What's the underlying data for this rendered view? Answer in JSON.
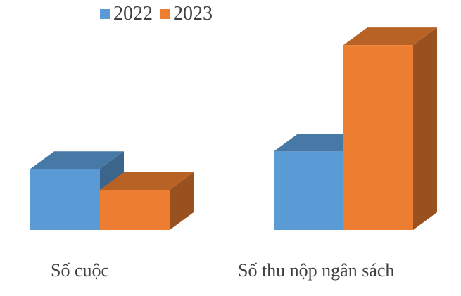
{
  "chart_data": {
    "type": "bar",
    "style": "3d-clustered-column",
    "categories": [
      "Số cuộc",
      "Số thu nộp ngân sách"
    ],
    "series": [
      {
        "name": "2022",
        "color": "#5B9BD5",
        "values": [
          35,
          45
        ]
      },
      {
        "name": "2023",
        "color": "#ED7D31",
        "values": [
          23,
          106
        ]
      }
    ],
    "legend_position": "top",
    "grid": false,
    "axes_visible": false,
    "ylim": [
      0,
      110
    ]
  }
}
